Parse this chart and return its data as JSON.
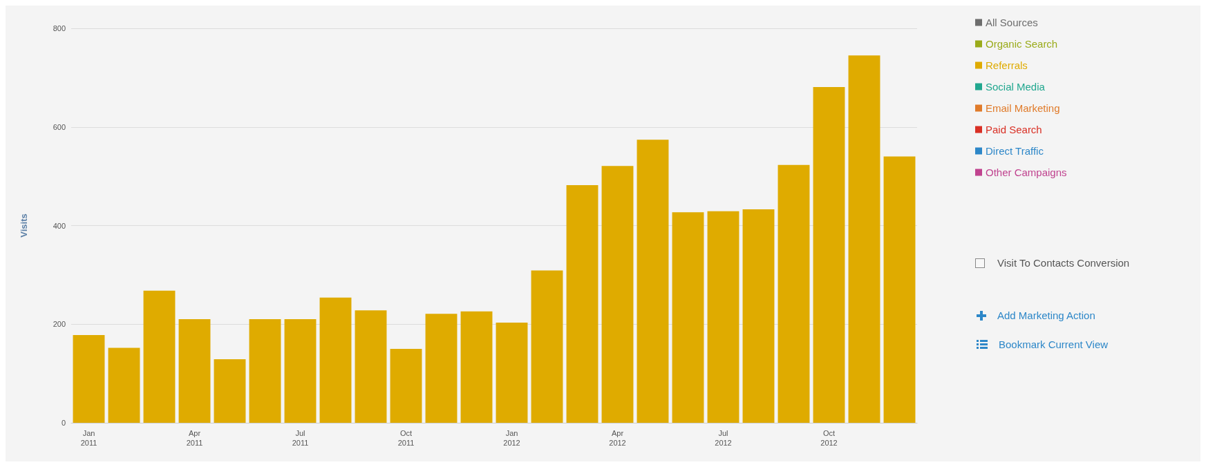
{
  "chart_data": {
    "type": "bar",
    "ylabel": "Visits",
    "categories": [
      "Jan\n2011",
      null,
      null,
      "Apr\n2011",
      null,
      null,
      "Jul\n2011",
      null,
      null,
      "Oct\n2011",
      null,
      null,
      "Jan\n2012",
      null,
      null,
      "Apr\n2012",
      null,
      null,
      "Jul\n2012",
      null,
      null,
      "Oct\n2012",
      null,
      null
    ],
    "series": [
      {
        "name": "All Sources",
        "color": "#6d6d6d",
        "values": [
          null,
          null,
          null,
          null,
          null,
          null,
          null,
          null,
          null,
          null,
          null,
          null,
          null,
          null,
          null,
          null,
          null,
          null,
          null,
          null,
          null,
          null,
          null,
          null
        ]
      },
      {
        "name": "Organic Search",
        "color": "#9aab1a",
        "values": [
          null,
          null,
          null,
          null,
          null,
          null,
          null,
          null,
          null,
          null,
          null,
          null,
          null,
          null,
          null,
          null,
          null,
          null,
          null,
          null,
          null,
          null,
          null,
          null
        ]
      },
      {
        "name": "Referrals",
        "color": "#dfab00",
        "values": [
          178,
          152,
          268,
          210,
          129,
          210,
          210,
          254,
          228,
          150,
          221,
          226,
          203,
          309,
          482,
          521,
          574,
          427,
          429,
          433,
          523,
          681,
          745,
          540
        ]
      },
      {
        "name": "Social Media",
        "color": "#21a78f",
        "values": [
          null,
          null,
          null,
          null,
          null,
          null,
          null,
          null,
          null,
          null,
          null,
          null,
          null,
          null,
          null,
          null,
          null,
          null,
          null,
          null,
          null,
          null,
          null,
          null
        ]
      },
      {
        "name": "Email Marketing",
        "color": "#e07b2a",
        "values": [
          null,
          null,
          null,
          null,
          null,
          null,
          null,
          null,
          null,
          null,
          null,
          null,
          null,
          null,
          null,
          null,
          null,
          null,
          null,
          null,
          null,
          null,
          null,
          null
        ]
      },
      {
        "name": "Paid Search",
        "color": "#d93025",
        "values": [
          null,
          null,
          null,
          null,
          null,
          null,
          null,
          null,
          null,
          null,
          null,
          null,
          null,
          null,
          null,
          null,
          null,
          null,
          null,
          null,
          null,
          null,
          null,
          null
        ]
      },
      {
        "name": "Direct Traffic",
        "color": "#2d87c8",
        "values": [
          null,
          null,
          null,
          null,
          null,
          null,
          null,
          null,
          null,
          null,
          null,
          null,
          null,
          null,
          null,
          null,
          null,
          null,
          null,
          null,
          null,
          null,
          null,
          null
        ]
      },
      {
        "name": "Other Campaigns",
        "color": "#c0438f",
        "values": [
          null,
          null,
          null,
          null,
          null,
          null,
          null,
          null,
          null,
          null,
          null,
          null,
          null,
          null,
          null,
          null,
          null,
          null,
          null,
          null,
          null,
          null,
          null,
          null
        ]
      }
    ],
    "ylim": [
      0,
      800
    ],
    "yticks": [
      0,
      200,
      400,
      600,
      800
    ],
    "grid": "y",
    "legend": "right",
    "annotations": [
      "Visit To Contacts Conversion",
      "Add Marketing Action",
      "Bookmark Current View"
    ]
  }
}
